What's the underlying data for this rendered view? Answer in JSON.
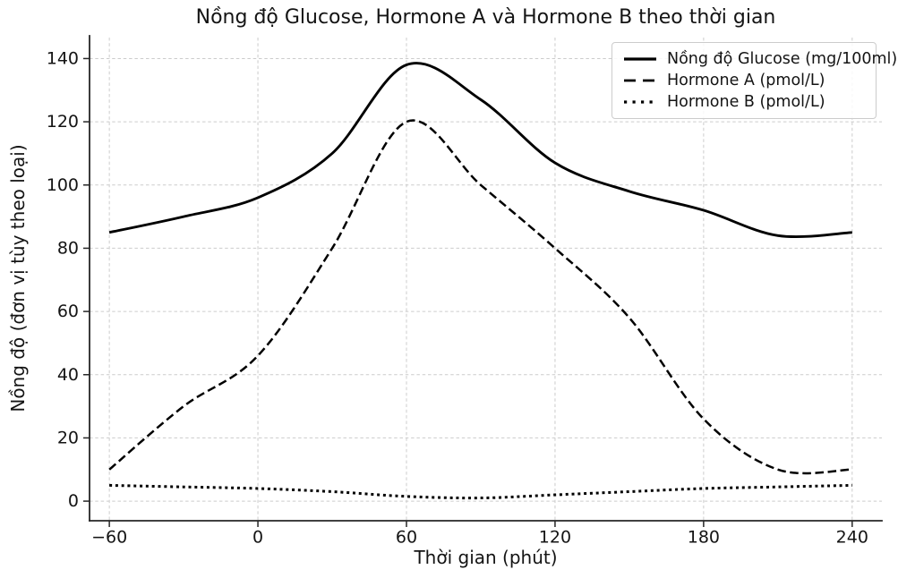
{
  "title": "Nồng độ Glucose, Hormone A và Hormone B theo thời gian",
  "chart_data": {
    "type": "line",
    "title": "Nồng độ Glucose, Hormone A và Hormone B theo thời gian",
    "xlabel": "Thời gian (phút)",
    "ylabel": "Nồng độ (đơn vị tùy theo loại)",
    "x": [
      -60,
      -30,
      0,
      30,
      60,
      90,
      120,
      150,
      180,
      210,
      240
    ],
    "series": [
      {
        "id": "glucose",
        "name": "Nồng độ Glucose (mg/100ml)",
        "style": "solid",
        "values": [
          85,
          90,
          96,
          110,
          138,
          127,
          107,
          98,
          92,
          84,
          85
        ]
      },
      {
        "id": "hormone-a",
        "name": "Hormone A (pmol/L)",
        "style": "dashed",
        "values": [
          10,
          30,
          46,
          80,
          120,
          100,
          80,
          58,
          26,
          10,
          10
        ]
      },
      {
        "id": "hormone-b",
        "name": "Hormone B (pmol/L)",
        "style": "dotted",
        "values": [
          5,
          4.5,
          4,
          3,
          1.5,
          1,
          2,
          3,
          4,
          4.5,
          5
        ]
      }
    ],
    "x_ticks": [
      -60,
      0,
      60,
      120,
      180,
      240
    ],
    "x_tick_labels": [
      "−60",
      "0",
      "60",
      "120",
      "180",
      "240"
    ],
    "y_ticks": [
      0,
      20,
      40,
      60,
      80,
      100,
      120,
      140
    ],
    "y_tick_labels": [
      "0",
      "20",
      "40",
      "60",
      "80",
      "100",
      "120",
      "140"
    ],
    "xlim": [
      -68,
      252
    ],
    "ylim": [
      -6.2,
      147.2
    ],
    "grid": true,
    "grid_style": "dashed",
    "legend_position": "upper right",
    "line_color": "#000000",
    "grid_color": "#cccccc",
    "background_color": "#ffffff"
  }
}
